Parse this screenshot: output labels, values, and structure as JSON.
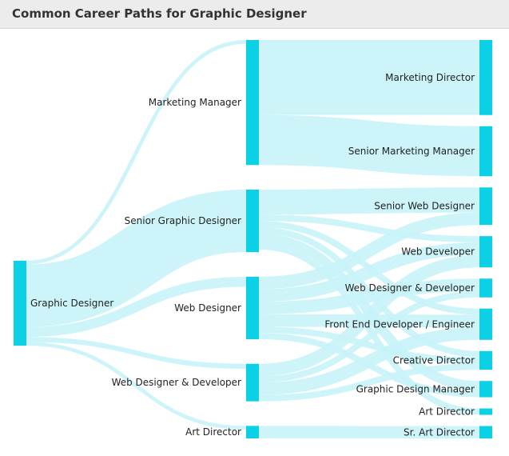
{
  "header": {
    "title": "Common Career Paths for Graphic Designer"
  },
  "colors": {
    "node": "#0bd0e6",
    "link": "#c8f3f8",
    "header_bg": "#ececec",
    "title_text": "#333333"
  },
  "diagram": {
    "type": "sankey",
    "columns": [
      [
        "Graphic Designer"
      ],
      [
        "Marketing Manager",
        "Senior Graphic Designer",
        "Web Designer",
        "Web Designer & Developer",
        "Art Director"
      ],
      [
        "Marketing Director",
        "Senior Marketing Manager",
        "Senior Web Designer",
        "Web Developer",
        "Web Designer & Developer",
        "Front End Developer / Engineer",
        "Creative Director",
        "Graphic Design Manager",
        "Art Director",
        "Sr. Art Director"
      ]
    ],
    "links": [
      {
        "source": "Graphic Designer",
        "target": "Marketing Manager",
        "value": 3
      },
      {
        "source": "Graphic Designer",
        "target": "Senior Graphic Designer",
        "value": 50
      },
      {
        "source": "Graphic Designer",
        "target": "Web Designer",
        "value": 8
      },
      {
        "source": "Graphic Designer",
        "target": "Web Designer & Developer",
        "value": 4
      },
      {
        "source": "Graphic Designer",
        "target": "Art Director",
        "value": 3
      },
      {
        "source": "Marketing Manager",
        "target": "Marketing Director",
        "value": 60
      },
      {
        "source": "Marketing Manager",
        "target": "Senior Marketing Manager",
        "value": 40
      },
      {
        "source": "Senior Graphic Designer",
        "target": "Senior Web Designer",
        "value": 20
      },
      {
        "source": "Senior Graphic Designer",
        "target": "Web Developer",
        "value": 5
      },
      {
        "source": "Senior Graphic Designer",
        "target": "Front End Developer / Engineer",
        "value": 5
      },
      {
        "source": "Senior Graphic Designer",
        "target": "Creative Director",
        "value": 5
      },
      {
        "source": "Senior Graphic Designer",
        "target": "Graphic Design Manager",
        "value": 8
      },
      {
        "source": "Senior Graphic Designer",
        "target": "Art Director",
        "value": 5
      },
      {
        "source": "Web Designer",
        "target": "Senior Web Designer",
        "value": 10
      },
      {
        "source": "Web Designer",
        "target": "Web Developer",
        "value": 10
      },
      {
        "source": "Web Designer",
        "target": "Web Designer & Developer",
        "value": 10
      },
      {
        "source": "Web Designer",
        "target": "Front End Developer / Engineer",
        "value": 10
      },
      {
        "source": "Web Designer",
        "target": "Creative Director",
        "value": 5
      },
      {
        "source": "Web Designer",
        "target": "Graphic Design Manager",
        "value": 5
      },
      {
        "source": "Web Designer & Developer",
        "target": "Web Developer",
        "value": 10
      },
      {
        "source": "Web Designer & Developer",
        "target": "Web Designer & Developer",
        "value": 5
      },
      {
        "source": "Web Designer & Developer",
        "target": "Front End Developer / Engineer",
        "value": 10
      },
      {
        "source": "Web Designer & Developer",
        "target": "Creative Director",
        "value": 5
      },
      {
        "source": "Art Director",
        "target": "Sr. Art Director",
        "value": 10
      }
    ]
  }
}
